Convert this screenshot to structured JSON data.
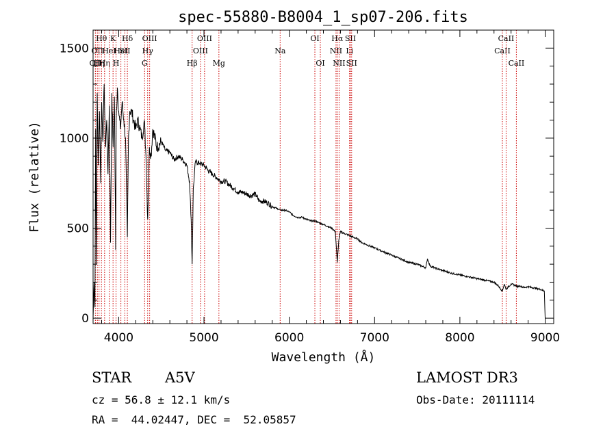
{
  "chart_data": {
    "type": "line",
    "title": "spec-55880-B8004_1_sp07-206.fits",
    "xlabel": "Wavelength (Å)",
    "ylabel": "Flux (relative)",
    "xlim": [
      3700,
      9100
    ],
    "ylim": [
      -30,
      1600
    ],
    "xticks": [
      {
        "value": 4000,
        "label": "4000"
      },
      {
        "value": 5000,
        "label": "5000"
      },
      {
        "value": 6000,
        "label": "6000"
      },
      {
        "value": 7000,
        "label": "7000"
      },
      {
        "value": 8000,
        "label": "8000"
      },
      {
        "value": 9000,
        "label": "9000"
      }
    ],
    "yticks": [
      {
        "value": 0,
        "label": "0"
      },
      {
        "value": 500,
        "label": "500"
      },
      {
        "value": 1000,
        "label": "1000"
      },
      {
        "value": 1500,
        "label": "1500"
      }
    ],
    "series": [
      {
        "name": "spectrum",
        "color": "#000000",
        "x": [
          3700,
          3712,
          3722,
          3730,
          3738,
          3748,
          3760,
          3775,
          3790,
          3800,
          3815,
          3830,
          3845,
          3860,
          3875,
          3890,
          3905,
          3920,
          3935,
          3950,
          3965,
          3970,
          3985,
          4000,
          4020,
          4040,
          4060,
          4080,
          4102,
          4115,
          4130,
          4150,
          4175,
          4200,
          4225,
          4250,
          4275,
          4300,
          4320,
          4340,
          4360,
          4380,
          4400,
          4450,
          4500,
          4550,
          4600,
          4650,
          4700,
          4750,
          4800,
          4830,
          4850,
          4861,
          4875,
          4900,
          4950,
          5000,
          5050,
          5100,
          5150,
          5200,
          5250,
          5300,
          5350,
          5400,
          5450,
          5500,
          5550,
          5600,
          5650,
          5700,
          5750,
          5800,
          5850,
          5900,
          5950,
          6000,
          6050,
          6100,
          6150,
          6200,
          6250,
          6300,
          6350,
          6400,
          6450,
          6500,
          6540,
          6563,
          6580,
          6600,
          6650,
          6700,
          6750,
          6800,
          6850,
          6900,
          6950,
          7000,
          7100,
          7200,
          7300,
          7400,
          7500,
          7600,
          7620,
          7650,
          7700,
          7800,
          7900,
          8000,
          8100,
          8200,
          8300,
          8400,
          8450,
          8498,
          8520,
          8542,
          8560,
          8600,
          8662,
          8680,
          8700,
          8750,
          8800,
          8850,
          8900,
          8950,
          8990,
          9000
        ],
        "y": [
          0,
          200,
          60,
          1050,
          300,
          1250,
          850,
          1150,
          750,
          1200,
          980,
          1300,
          950,
          1100,
          800,
          1180,
          420,
          1250,
          950,
          1230,
          380,
          1100,
          1280,
          1150,
          1050,
          1200,
          1100,
          1000,
          450,
          1000,
          1150,
          1150,
          1100,
          1050,
          1100,
          1050,
          1000,
          1100,
          900,
          550,
          950,
          900,
          1050,
          950,
          980,
          930,
          920,
          880,
          900,
          880,
          850,
          760,
          550,
          300,
          720,
          870,
          860,
          850,
          820,
          800,
          780,
          760,
          760,
          740,
          720,
          700,
          700,
          690,
          680,
          690,
          650,
          650,
          640,
          620,
          610,
          600,
          600,
          590,
          570,
          560,
          560,
          550,
          540,
          540,
          530,
          520,
          510,
          500,
          480,
          310,
          430,
          480,
          470,
          460,
          450,
          440,
          420,
          410,
          400,
          390,
          370,
          350,
          330,
          310,
          300,
          280,
          330,
          290,
          280,
          265,
          250,
          240,
          230,
          220,
          210,
          200,
          180,
          150,
          190,
          160,
          170,
          190,
          180,
          175,
          180,
          170,
          175,
          170,
          165,
          160,
          150,
          0
        ]
      }
    ],
    "emission_lines": [
      {
        "wl": 3727,
        "label": "OII",
        "row": 2
      },
      {
        "wl": 3750,
        "label": "OII",
        "row": 1
      },
      {
        "wl": 3770,
        "label": "Hη",
        "row": 2
      },
      {
        "wl": 3798,
        "label": "Hθ",
        "row": 0
      },
      {
        "wl": 3835,
        "label": "Hη",
        "row": 2
      },
      {
        "wl": 3889,
        "label": "HeI",
        "row": 1
      },
      {
        "wl": 3934,
        "label": "K",
        "row": 0
      },
      {
        "wl": 3969,
        "label": "H",
        "row": 2
      },
      {
        "wl": 4026,
        "label": "HeI",
        "row": 1
      },
      {
        "wl": 4072,
        "label": "SII",
        "row": 1
      },
      {
        "wl": 4102,
        "label": "Hδ",
        "row": 0
      },
      {
        "wl": 4304,
        "label": "G",
        "row": 2
      },
      {
        "wl": 4340,
        "label": "Hγ",
        "row": 1
      },
      {
        "wl": 4363,
        "label": "OIII",
        "row": 0
      },
      {
        "wl": 4861,
        "label": "Hβ",
        "row": 2
      },
      {
        "wl": 4959,
        "label": "OIII",
        "row": 1
      },
      {
        "wl": 5007,
        "label": "OIII",
        "row": 0
      },
      {
        "wl": 5175,
        "label": "Mg",
        "row": 2
      },
      {
        "wl": 5893,
        "label": "Na",
        "row": 1
      },
      {
        "wl": 6300,
        "label": "OI",
        "row": 0
      },
      {
        "wl": 6364,
        "label": "OI",
        "row": 2
      },
      {
        "wl": 6548,
        "label": "NII",
        "row": 1
      },
      {
        "wl": 6563,
        "label": "Hα",
        "row": 0
      },
      {
        "wl": 6584,
        "label": "NII",
        "row": 2
      },
      {
        "wl": 6707,
        "label": "Li",
        "row": 1
      },
      {
        "wl": 6717,
        "label": "SII",
        "row": 0
      },
      {
        "wl": 6731,
        "label": "SII",
        "row": 2
      },
      {
        "wl": 8498,
        "label": "CaII",
        "row": 1
      },
      {
        "wl": 8542,
        "label": "CaII",
        "row": 0
      },
      {
        "wl": 8662,
        "label": "CaII",
        "row": 2
      }
    ]
  },
  "info": {
    "class_label": "STAR",
    "subclass": "A5V",
    "survey": "LAMOST DR3",
    "cz": "cz = 56.8 ± 12.1 km/s",
    "obs_date": "Obs-Date: 20111114",
    "radec": "RA =  44.02447, DEC =  52.05857"
  },
  "colors": {
    "line_marker": "#cc0000",
    "spectrum": "#000000"
  }
}
